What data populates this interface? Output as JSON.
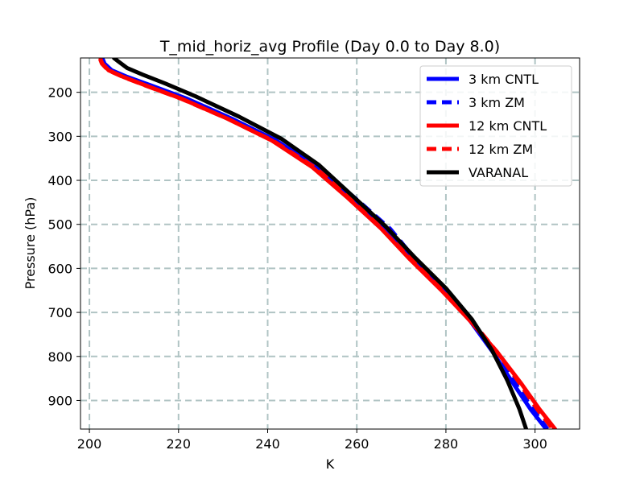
{
  "chart_data": {
    "type": "line",
    "title": "T_mid_horiz_avg Profile (Day 0.0 to Day 8.0)",
    "xlabel": "K",
    "ylabel": "Pressure (hPa)",
    "xlim": [
      198,
      310
    ],
    "ylim": [
      965,
      122
    ],
    "y_inverted": true,
    "grid": true,
    "legend_position": "top-right",
    "xticks": [
      200,
      220,
      240,
      260,
      280,
      300
    ],
    "yticks": [
      200,
      300,
      400,
      500,
      600,
      700,
      800,
      900
    ],
    "series": [
      {
        "name": "3 km CNTL",
        "color": "#0000ff",
        "dash": "solid",
        "x": [
          203.0,
          203.4,
          205.0,
          208.5,
          214.0,
          222.0,
          232.0,
          242.0,
          251.0,
          259.0,
          266.5,
          272.5,
          279.5,
          285.5,
          290.5,
          295.0,
          299.0,
          302.5
        ],
        "y": [
          125,
          135,
          150,
          165,
          185,
          215,
          260,
          310,
          370,
          440,
          510,
          580,
          650,
          720,
          790,
          860,
          920,
          965
        ]
      },
      {
        "name": "3 km ZM",
        "color": "#0000ff",
        "dash": "dashed",
        "x": [
          202.8,
          203.2,
          204.8,
          208.3,
          213.8,
          221.8,
          231.8,
          241.8,
          251.2,
          259.6,
          267.5,
          273.2,
          279.8,
          285.5,
          290.8,
          295.5,
          299.5,
          302.8
        ],
        "y": [
          125,
          135,
          150,
          165,
          185,
          215,
          260,
          310,
          370,
          440,
          510,
          580,
          650,
          720,
          790,
          860,
          920,
          965
        ]
      },
      {
        "name": "12 km CNTL",
        "color": "#ff0000",
        "dash": "solid",
        "x": [
          202.5,
          202.9,
          204.3,
          207.6,
          212.8,
          220.8,
          231.0,
          241.0,
          250.0,
          258.0,
          265.5,
          272.0,
          279.0,
          285.5,
          291.5,
          296.8,
          301.0,
          304.5
        ],
        "y": [
          125,
          135,
          150,
          165,
          185,
          215,
          260,
          310,
          370,
          440,
          510,
          580,
          650,
          720,
          790,
          860,
          920,
          965
        ]
      },
      {
        "name": "12 km ZM",
        "color": "#ff0000",
        "dash": "dashed",
        "x": [
          202.4,
          202.8,
          204.2,
          207.5,
          212.7,
          220.7,
          231.0,
          241.2,
          250.5,
          258.8,
          267.0,
          273.0,
          279.5,
          285.8,
          291.5,
          296.5,
          300.5,
          304.0
        ],
        "y": [
          125,
          135,
          150,
          165,
          185,
          215,
          260,
          310,
          370,
          440,
          510,
          580,
          650,
          720,
          790,
          860,
          920,
          965
        ]
      },
      {
        "name": "VARANAL",
        "color": "#000000",
        "dash": "solid",
        "x": [
          205.5,
          206.5,
          208.5,
          212.0,
          217.0,
          224.0,
          233.5,
          243.0,
          251.5,
          259.0,
          266.5,
          273.0,
          280.0,
          285.8,
          290.3,
          293.8,
          296.5,
          298.0
        ],
        "y": [
          122,
          130,
          145,
          160,
          180,
          210,
          255,
          305,
          365,
          435,
          505,
          575,
          645,
          715,
          785,
          855,
          920,
          965
        ]
      }
    ]
  }
}
